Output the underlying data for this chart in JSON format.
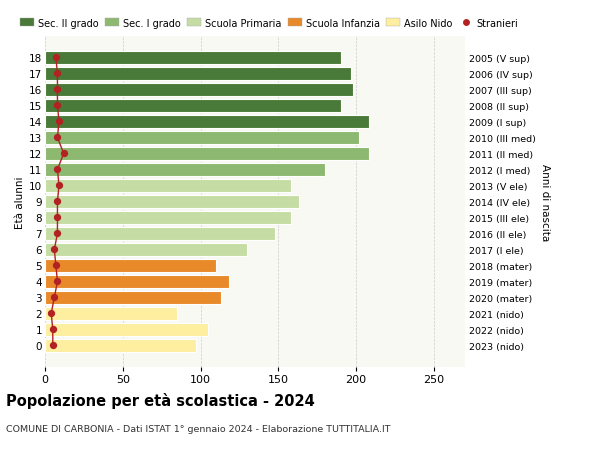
{
  "title": "Popolazione per età scolastica - 2024",
  "subtitle": "COMUNE DI CARBONIA - Dati ISTAT 1° gennaio 2024 - Elaborazione TUTTITALIA.IT",
  "ylabel": "Età alunni",
  "right_ylabel": "Anni di nascita",
  "ages": [
    0,
    1,
    2,
    3,
    4,
    5,
    6,
    7,
    8,
    9,
    10,
    11,
    12,
    13,
    14,
    15,
    16,
    17,
    18
  ],
  "values": [
    97,
    105,
    85,
    113,
    118,
    110,
    130,
    148,
    158,
    163,
    158,
    180,
    208,
    202,
    208,
    190,
    198,
    197,
    190
  ],
  "stranieri": [
    5,
    5,
    4,
    6,
    8,
    7,
    6,
    8,
    8,
    8,
    9,
    8,
    12,
    8,
    9,
    8,
    8,
    8,
    7
  ],
  "right_labels": [
    "2023 (nido)",
    "2022 (nido)",
    "2021 (nido)",
    "2020 (mater)",
    "2019 (mater)",
    "2018 (mater)",
    "2017 (I ele)",
    "2016 (II ele)",
    "2015 (III ele)",
    "2014 (IV ele)",
    "2013 (V ele)",
    "2012 (I med)",
    "2011 (II med)",
    "2010 (III med)",
    "2009 (I sup)",
    "2008 (II sup)",
    "2007 (III sup)",
    "2006 (IV sup)",
    "2005 (V sup)"
  ],
  "bar_colors": [
    "#FDEEA0",
    "#FDEEA0",
    "#FDEEA0",
    "#E8892A",
    "#E8892A",
    "#E8892A",
    "#C5DDA4",
    "#C5DDA4",
    "#C5DDA4",
    "#C5DDA4",
    "#C5DDA4",
    "#8CB870",
    "#8CB870",
    "#8CB870",
    "#4A7A3A",
    "#4A7A3A",
    "#4A7A3A",
    "#4A7A3A",
    "#4A7A3A"
  ],
  "legend_labels": [
    "Sec. II grado",
    "Sec. I grado",
    "Scuola Primaria",
    "Scuola Infanzia",
    "Asilo Nido",
    "Stranieri"
  ],
  "legend_colors": [
    "#4A7A3A",
    "#8CB870",
    "#C5DDA4",
    "#E8892A",
    "#FDEEA0",
    "#B22222"
  ],
  "bg_color": "#FFFFFF",
  "plot_bg_color": "#F9F9F4",
  "grid_color": "#CCCCCC",
  "stranieri_color": "#B22222",
  "stranieri_line_color": "#B22222",
  "xlim": [
    0,
    270
  ],
  "xticks": [
    0,
    50,
    100,
    150,
    200,
    250
  ]
}
